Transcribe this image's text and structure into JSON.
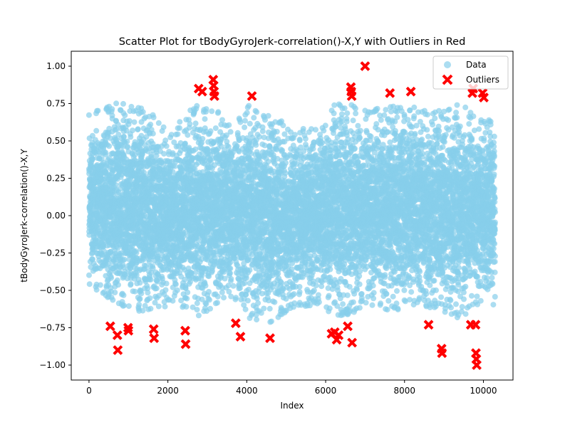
{
  "chart_data": {
    "type": "scatter",
    "title": "Scatter Plot for tBodyGyroJerk-correlation()-X,Y with Outliers in Red",
    "xlabel": "Index",
    "ylabel": "tBodyGyroJerk-correlation()-X,Y",
    "xlim": [
      -450,
      10750
    ],
    "ylim": [
      -1.1,
      1.1
    ],
    "xticks": [
      0,
      2000,
      4000,
      6000,
      8000,
      10000
    ],
    "xtick_labels": [
      "0",
      "2000",
      "4000",
      "6000",
      "8000",
      "10000"
    ],
    "yticks": [
      -1.0,
      -0.75,
      -0.5,
      -0.25,
      0.0,
      0.25,
      0.5,
      0.75,
      1.0
    ],
    "ytick_labels": [
      "−1.00",
      "−0.75",
      "−0.50",
      "−0.25",
      "0.00",
      "0.25",
      "0.50",
      "0.75",
      "1.00"
    ],
    "grid": false,
    "legend": {
      "position": "top-right",
      "entries": [
        "Data",
        "Outliers"
      ]
    },
    "colors": {
      "data": "#87ceeb",
      "outliers": "#ff0000"
    },
    "data_count": 10299,
    "data_envelope": {
      "x": [
        0,
        700,
        1400,
        2100,
        2800,
        3200,
        3600,
        4100,
        4600,
        5200,
        5800,
        6200,
        6600,
        7000,
        7600,
        8200,
        8800,
        9400,
        9800,
        10300
      ],
      "upper": [
        0.7,
        0.76,
        0.72,
        0.62,
        0.75,
        0.72,
        0.6,
        0.75,
        0.66,
        0.6,
        0.58,
        0.76,
        0.75,
        0.72,
        0.73,
        0.75,
        0.7,
        0.75,
        0.7,
        0.62
      ],
      "lower": [
        -0.47,
        -0.6,
        -0.65,
        -0.6,
        -0.68,
        -0.6,
        -0.55,
        -0.7,
        -0.72,
        -0.62,
        -0.6,
        -0.66,
        -0.68,
        -0.6,
        -0.65,
        -0.6,
        -0.62,
        -0.7,
        -0.6,
        -0.6
      ]
    },
    "series": [
      {
        "name": "Outliers",
        "x": [
          540,
          720,
          730,
          990,
          1000,
          1640,
          1650,
          2440,
          2450,
          2780,
          2870,
          3150,
          3160,
          3170,
          3180,
          3720,
          3840,
          4130,
          4590,
          6150,
          6230,
          6280,
          6330,
          6560,
          6640,
          6650,
          6660,
          6670,
          7000,
          7630,
          8160,
          8610,
          8940,
          8950,
          9680,
          9720,
          9740,
          9800,
          9810,
          9820,
          9830,
          9980,
          10010
        ],
        "y": [
          -0.74,
          -0.8,
          -0.9,
          -0.75,
          -0.77,
          -0.76,
          -0.82,
          -0.77,
          -0.86,
          0.85,
          0.83,
          0.91,
          0.87,
          0.83,
          0.8,
          -0.72,
          -0.81,
          0.8,
          -0.82,
          -0.79,
          -0.78,
          -0.83,
          -0.8,
          -0.74,
          0.86,
          0.83,
          0.8,
          -0.85,
          1.0,
          0.82,
          0.83,
          -0.73,
          -0.89,
          -0.92,
          -0.73,
          0.82,
          0.85,
          -0.73,
          -0.92,
          -0.96,
          -1.0,
          0.82,
          0.79
        ]
      }
    ]
  }
}
